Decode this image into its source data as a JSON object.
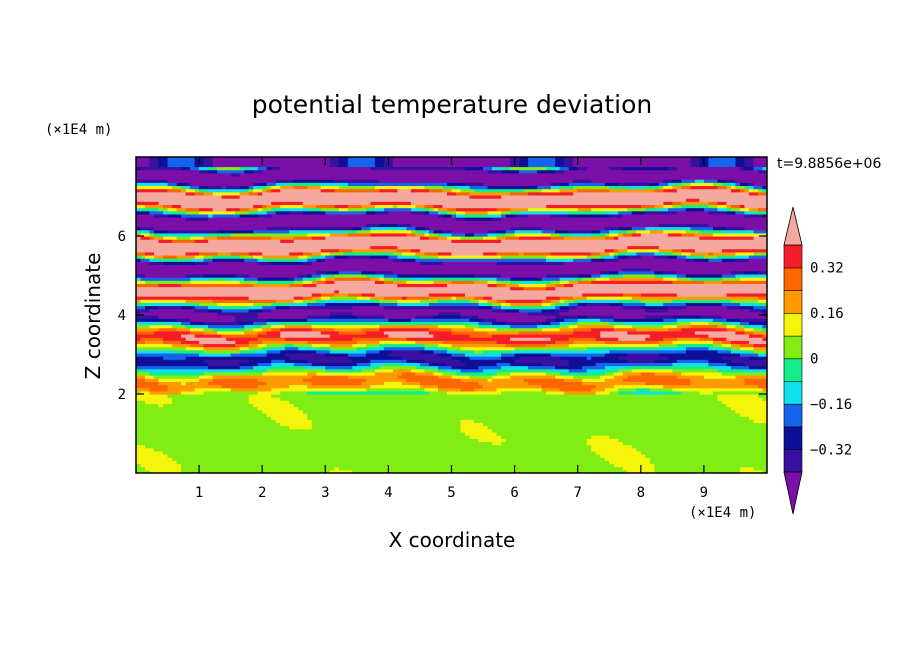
{
  "chart_data": {
    "type": "heatmap",
    "title": "potential temperature deviation",
    "xlabel": "X coordinate",
    "ylabel": "Z coordinate",
    "x_unit": "(×1E4 m)",
    "y_unit": "(×1E4 m)",
    "time_label": "t=9.8856e+06",
    "xlim": [
      0,
      10
    ],
    "ylim": [
      0,
      8
    ],
    "x_ticks": [
      1,
      2,
      3,
      4,
      5,
      6,
      7,
      8,
      9
    ],
    "y_ticks": [
      2,
      4,
      6
    ],
    "colorbar": {
      "levels": [
        -0.4,
        -0.32,
        -0.24,
        -0.16,
        -0.08,
        0,
        0.08,
        0.16,
        0.24,
        0.32,
        0.4
      ],
      "tick_labels": [
        "0.32",
        "0.16",
        "0",
        "−0.16",
        "−0.32"
      ],
      "tick_values": [
        0.32,
        0.16,
        0,
        -0.16,
        -0.32
      ],
      "colors": {
        "below": "#7b0fa8",
        "bands": [
          "#3a10a0",
          "#0f0f98",
          "#1464f0",
          "#0fe0f0",
          "#12ee8a",
          "#80ee14",
          "#f5f50c",
          "#ff9b00",
          "#ff6600",
          "#f51e28"
        ],
        "above": "#f5a8a0"
      },
      "extend": "both"
    },
    "regions": {
      "lower": {
        "z_range": [
          0,
          2
        ],
        "dominant": [
          0,
          0.08
        ],
        "secondary": [
          0.08,
          0.16
        ]
      },
      "upper": {
        "z_range": [
          2,
          8
        ],
        "alternating_bands": [
          "#7b0fa8",
          "#f5a8a0"
        ]
      }
    }
  }
}
